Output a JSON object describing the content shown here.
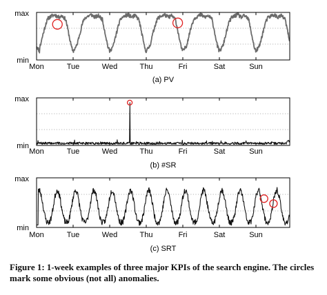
{
  "chart_data": [
    {
      "type": "line",
      "title": "(a) PV",
      "ylabels": {
        "top": "max",
        "bottom": "min"
      },
      "x_ticks": [
        "Mon",
        "Tue",
        "Wed",
        "Thu",
        "Fri",
        "Sat",
        "Sun"
      ],
      "ylim": [
        0,
        1
      ],
      "grid": "horizontal dotted",
      "series_color": "#6b6b6b",
      "anomaly_color": "#e02020",
      "daily_profile": [
        [
          0.0,
          0.18
        ],
        [
          0.1,
          0.3
        ],
        [
          0.18,
          0.55
        ],
        [
          0.26,
          0.78
        ],
        [
          0.32,
          0.88
        ],
        [
          0.4,
          0.92
        ],
        [
          0.5,
          0.95
        ],
        [
          0.6,
          0.9
        ],
        [
          0.7,
          0.93
        ],
        [
          0.8,
          0.85
        ],
        [
          0.88,
          0.55
        ],
        [
          0.95,
          0.28
        ],
        [
          1.0,
          0.18
        ]
      ],
      "anomalies": [
        {
          "day": 0.57,
          "value": 0.75
        },
        {
          "day": 3.86,
          "value": 0.78
        }
      ]
    },
    {
      "type": "line",
      "title": "(b) #SR",
      "ylabels": {
        "top": "max",
        "bottom": "min"
      },
      "x_ticks": [
        "Mon",
        "Tue",
        "Wed",
        "Thu",
        "Fri",
        "Sat",
        "Sun"
      ],
      "ylim": [
        0,
        1
      ],
      "grid": "horizontal dotted",
      "series_color": "#111111",
      "anomaly_color": "#e02020",
      "baseline": 0.04,
      "spikes": [
        {
          "day": 2.55,
          "value": 0.9
        }
      ],
      "anomalies": [
        {
          "day": 2.55,
          "value": 0.9
        }
      ]
    },
    {
      "type": "line",
      "title": "(c) SRT",
      "ylabels": {
        "top": "max",
        "bottom": "min"
      },
      "x_ticks": [
        "Mon",
        "Tue",
        "Wed",
        "Thu",
        "Fri",
        "Sat",
        "Sun"
      ],
      "ylim": [
        0,
        1
      ],
      "grid": "horizontal dotted",
      "series_color": "#111111",
      "anomaly_color": "#e02020",
      "cycles_per_day": 2,
      "range": [
        0.1,
        0.75
      ],
      "anomalies": [
        {
          "day": 6.22,
          "value": 0.58
        },
        {
          "day": 6.48,
          "value": 0.48
        }
      ]
    }
  ],
  "caption": "Figure 1: 1-week examples of three major KPIs of the search engine. The circles mark some obvious (not all) anomalies."
}
